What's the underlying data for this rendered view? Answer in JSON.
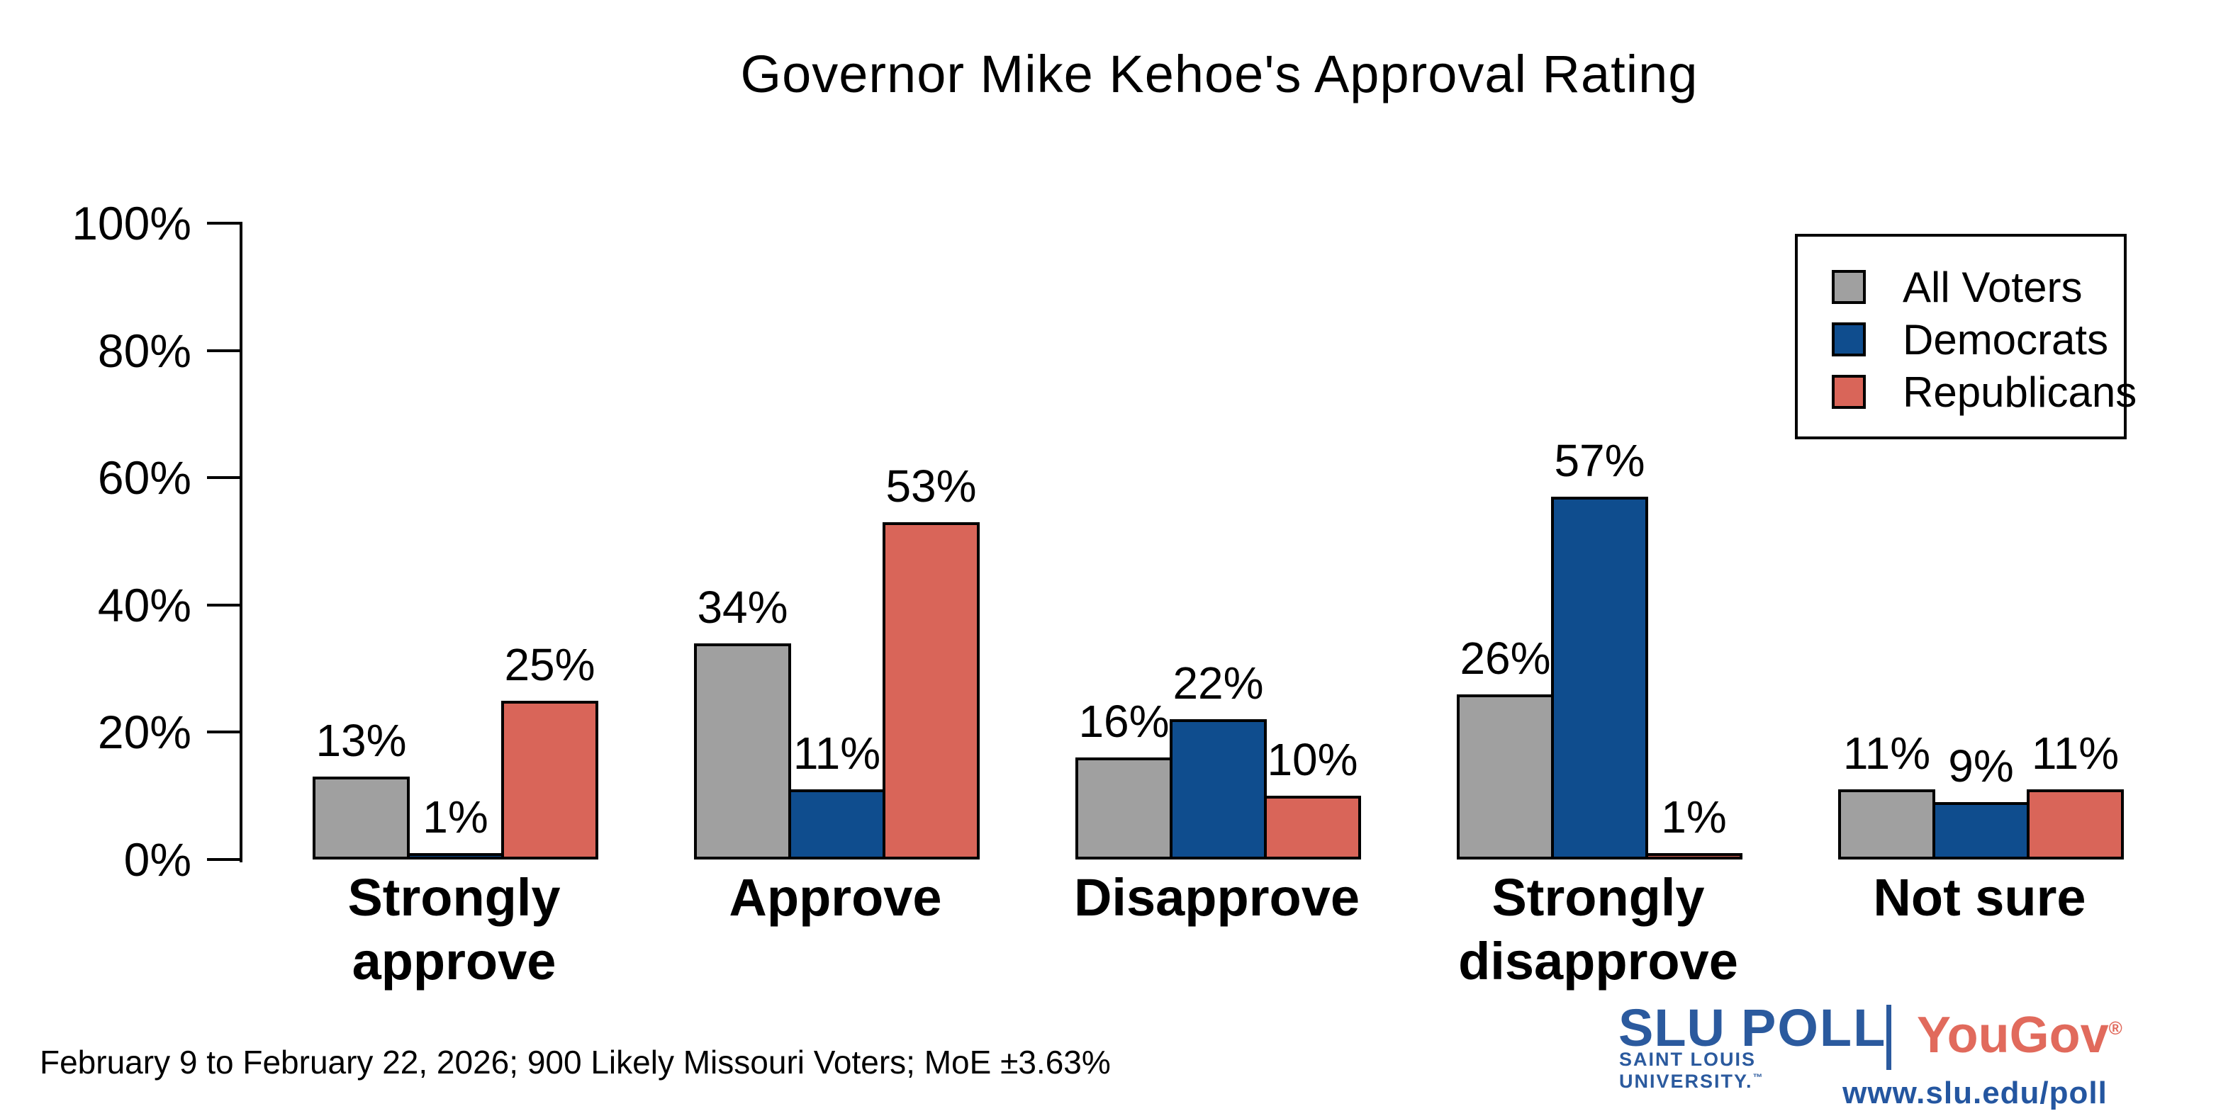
{
  "title": "Governor Mike Kehoe's Approval Rating",
  "footnote": "February 9 to February 22, 2026; 900 Likely Missouri Voters; MoE ±3.63%",
  "chart_data": {
    "type": "bar",
    "title": "Governor Mike Kehoe's Approval Rating",
    "categories": [
      "Strongly approve",
      "Approve",
      "Disapprove",
      "Strongly disapprove",
      "Not sure"
    ],
    "series": [
      {
        "name": "All Voters",
        "color": "#a0a0a0",
        "values": [
          13,
          34,
          16,
          26,
          11
        ]
      },
      {
        "name": "Democrats",
        "color": "#0f4d8e",
        "values": [
          1,
          11,
          22,
          57,
          9
        ]
      },
      {
        "name": "Republicans",
        "color": "#d96559",
        "values": [
          25,
          53,
          10,
          1,
          11
        ]
      }
    ],
    "value_suffix": "%",
    "bar_outline": "#000000",
    "xlabel": "",
    "ylabel": "",
    "ylim": [
      0,
      100
    ],
    "yticks": [
      0,
      20,
      40,
      60,
      80,
      100
    ],
    "ytick_labels": [
      "0%",
      "20%",
      "40%",
      "60%",
      "80%",
      "100%"
    ],
    "grid": false,
    "legend_position": "top-right"
  },
  "branding": {
    "slu_wordmark": "SLU",
    "poll_wordmark": "POLL",
    "slu_subtitle": "SAINT LOUIS UNIVERSITY.",
    "slu_trademark": "™",
    "yougov_wordmark": "YouGov",
    "yougov_registered": "®",
    "website": "www.slu.edu/poll",
    "slu_blue": "#2b5a9e",
    "yougov_red": "#e16a5c",
    "url_blue": "#2456a0"
  }
}
